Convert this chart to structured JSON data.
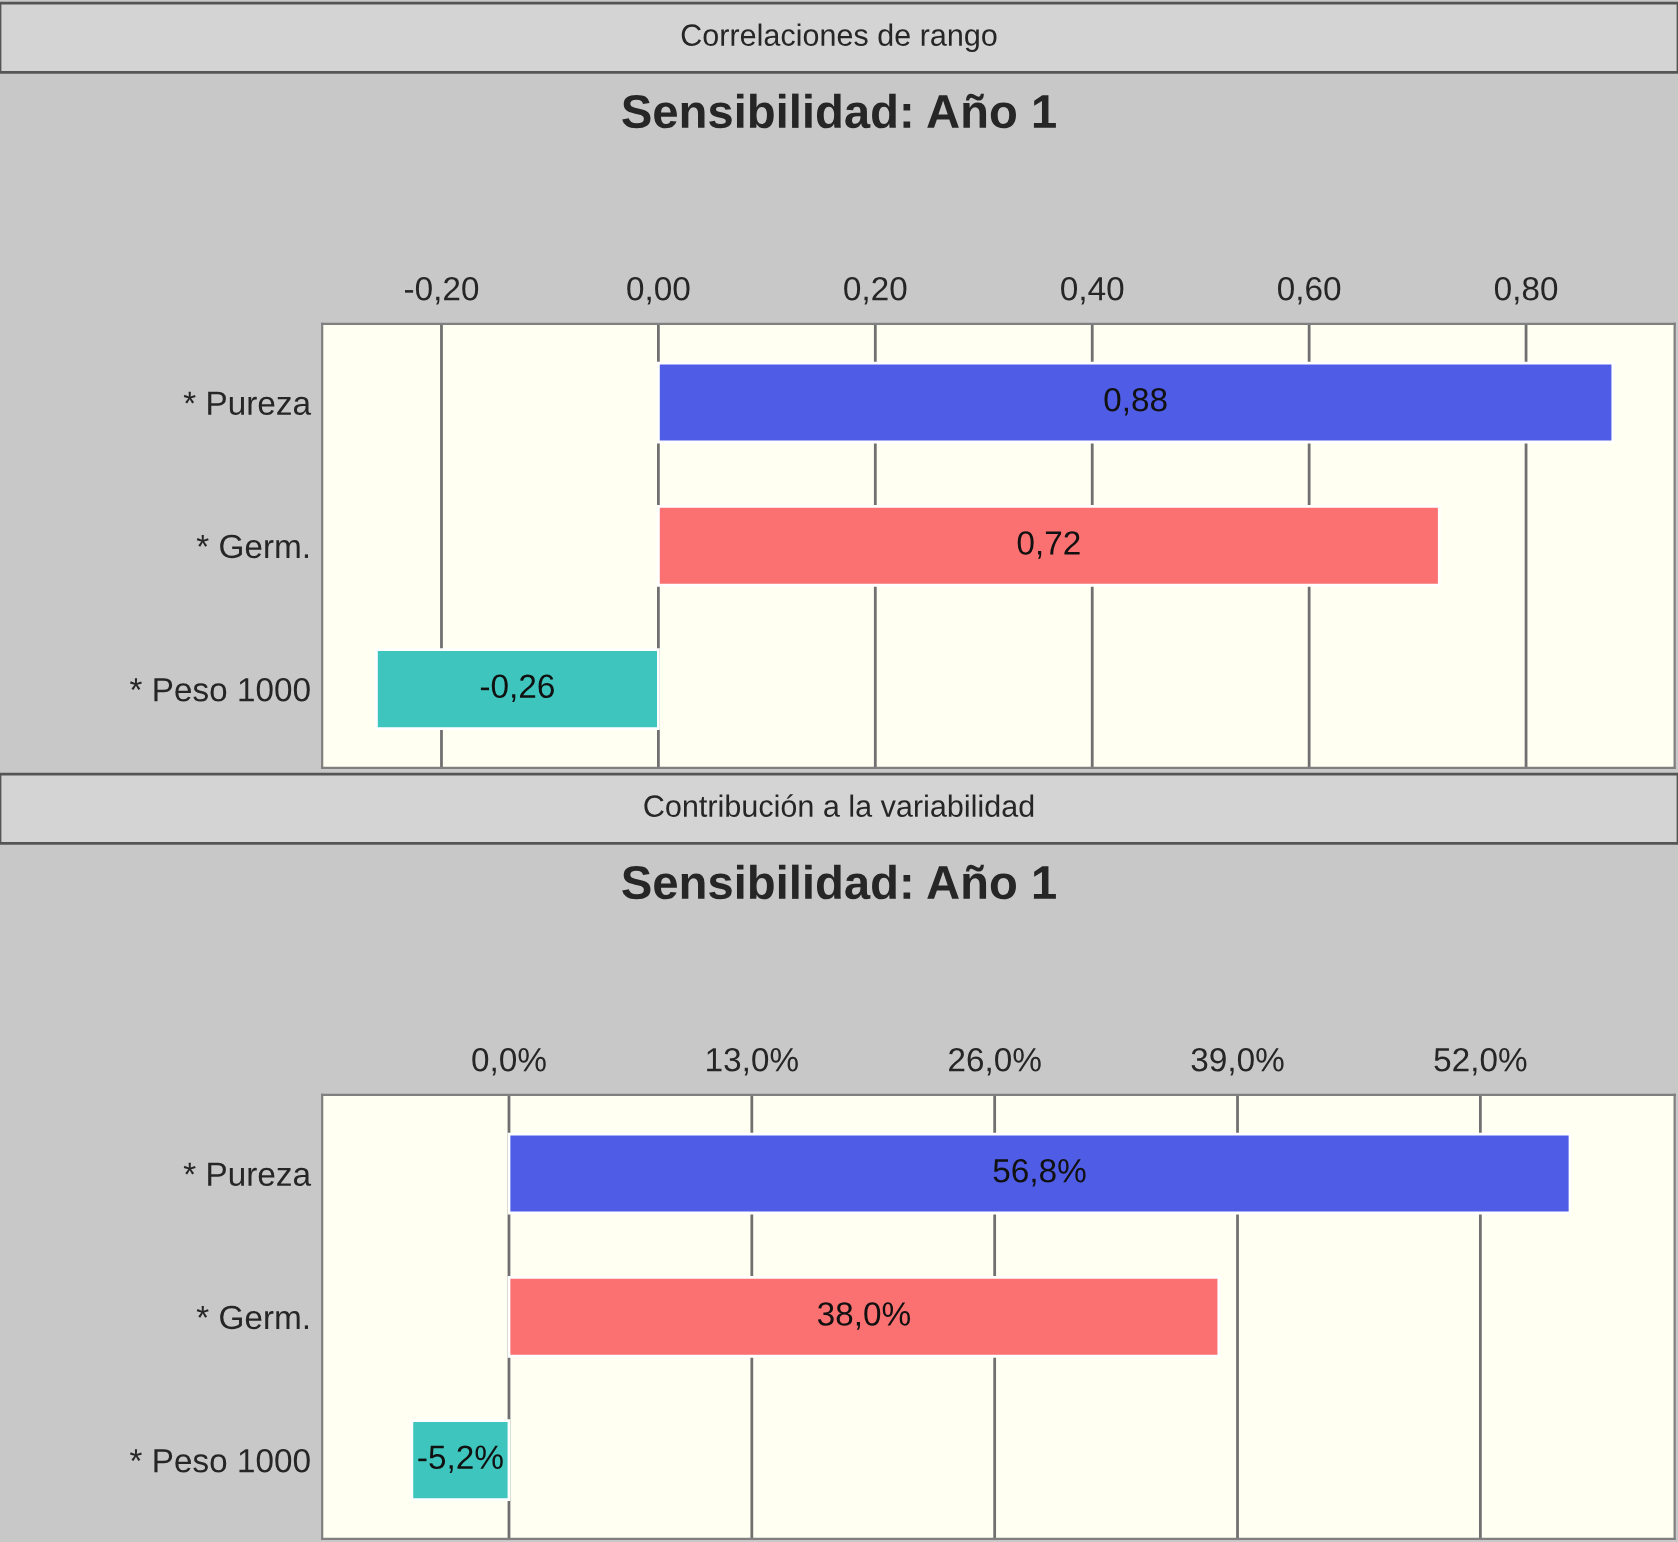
{
  "chart_data": [
    {
      "type": "bar",
      "orientation": "horizontal",
      "title": "Correlaciones de rango",
      "subtitle": "Sensibilidad: Año 1",
      "categories": [
        "* Pureza",
        "* Germ.",
        "* Peso 1000"
      ],
      "values": [
        0.88,
        0.72,
        -0.26
      ],
      "colors": [
        "#4f5de6",
        "#fb7070",
        "#3ec6be"
      ],
      "value_labels": [
        "0,88",
        "0,72",
        "-0,26"
      ],
      "xlim": [
        -0.31,
        0.937
      ],
      "xticks": [
        {
          "value": -0.2,
          "label": "-0,20"
        },
        {
          "value": 0,
          "label": "0,00"
        },
        {
          "value": 0.2,
          "label": "0,20"
        },
        {
          "value": 0.4,
          "label": "0,40"
        },
        {
          "value": 0.6,
          "label": "0,60"
        },
        {
          "value": 0.8,
          "label": "0,80"
        }
      ],
      "grid": "x"
    },
    {
      "type": "bar",
      "orientation": "horizontal",
      "title": "Contribución a la variabilidad",
      "subtitle": "Sensibilidad: Año 1",
      "categories": [
        "* Pureza",
        "* Germ.",
        "* Peso 1000"
      ],
      "values": [
        56.8,
        38.0,
        -5.2
      ],
      "colors": [
        "#4f5de6",
        "#fb7070",
        "#3ec6be"
      ],
      "value_labels": [
        "56,8%",
        "38,0%",
        "-5,2%"
      ],
      "xlim": [
        -10,
        62.4
      ],
      "xticks": [
        {
          "value": 0,
          "label": "0,0%"
        },
        {
          "value": 13,
          "label": "13,0%"
        },
        {
          "value": 26,
          "label": "26,0%"
        },
        {
          "value": 39,
          "label": "39,0%"
        },
        {
          "value": 52,
          "label": "52,0%"
        }
      ],
      "grid": "x"
    }
  ]
}
